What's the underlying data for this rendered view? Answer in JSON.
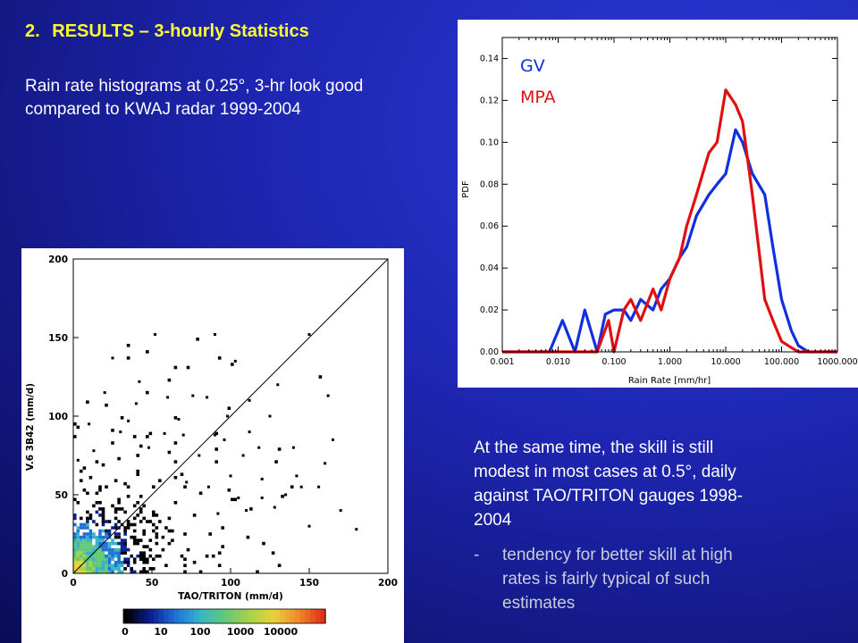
{
  "slide": {
    "heading_number": "2.",
    "heading_text": "RESULTS – 3-hourly Statistics",
    "intro_text": "Rain rate histograms at 0.25°, 3-hr look good compared to KWAJ radar 1999-2004",
    "skill_text": "At the same time, the skill is still modest in most cases at 0.5°, daily against TAO/TRITON gauges 1998-2004",
    "bullet_dash": "-",
    "bullet_text": "tendency for better skill at high rates is fairly typical of such estimates"
  },
  "colors": {
    "gv": "#1030e0",
    "mpa": "#e01010",
    "heading": "#ffff33"
  },
  "chart_data": [
    {
      "type": "line",
      "xlabel": "Rain Rate [mm/hr]",
      "ylabel": "PDF",
      "x_scale": "log",
      "xlim": [
        0.001,
        1000
      ],
      "ylim": [
        0,
        0.15
      ],
      "x_ticks": [
        0.001,
        0.01,
        0.1,
        1,
        10,
        100,
        1000
      ],
      "x_tick_labels": [
        "0.001",
        "0.010",
        "0.100",
        "1.000",
        "10.000",
        "100.000",
        "1000.000"
      ],
      "y_ticks": [
        0,
        0.02,
        0.04,
        0.06,
        0.08,
        0.1,
        0.12,
        0.14
      ],
      "y_tick_labels": [
        "0.00",
        "0.02",
        "0.04",
        "0.06",
        "0.08",
        "0.10",
        "0.12",
        "0.14"
      ],
      "legend_position": "top-left",
      "series": [
        {
          "name": "GV",
          "color": "#1030e0",
          "x": [
            0.001,
            0.007,
            0.012,
            0.02,
            0.03,
            0.05,
            0.07,
            0.1,
            0.15,
            0.2,
            0.3,
            0.5,
            0.7,
            1.0,
            1.5,
            2.0,
            3.0,
            5.0,
            7.0,
            10,
            15,
            20,
            30,
            50,
            70,
            100,
            150,
            200,
            300,
            500,
            700,
            1000
          ],
          "y": [
            0.0,
            0.0,
            0.015,
            0.0,
            0.02,
            0.0,
            0.018,
            0.02,
            0.02,
            0.015,
            0.025,
            0.02,
            0.03,
            0.035,
            0.045,
            0.05,
            0.065,
            0.075,
            0.08,
            0.085,
            0.106,
            0.1,
            0.085,
            0.075,
            0.05,
            0.025,
            0.01,
            0.003,
            0.0,
            0.0,
            0.0,
            0.0
          ]
        },
        {
          "name": "MPA",
          "color": "#e01010",
          "x": [
            0.001,
            0.02,
            0.05,
            0.08,
            0.1,
            0.15,
            0.2,
            0.3,
            0.5,
            0.7,
            1.0,
            1.5,
            2.0,
            3.0,
            5.0,
            7.0,
            10,
            15,
            20,
            30,
            50,
            70,
            100,
            150,
            200,
            300,
            500,
            700,
            1000
          ],
          "y": [
            0.0,
            0.0,
            0.0,
            0.015,
            0.0,
            0.02,
            0.025,
            0.015,
            0.03,
            0.02,
            0.035,
            0.045,
            0.06,
            0.075,
            0.095,
            0.1,
            0.125,
            0.118,
            0.11,
            0.075,
            0.025,
            0.015,
            0.005,
            0.002,
            0.0,
            0.0,
            0.0,
            0.0,
            0.0
          ]
        }
      ]
    },
    {
      "type": "scatter",
      "xlabel": "TAO/TRITON (mm/d)",
      "ylabel": "V.6 3B42 (mm/d)",
      "xlim": [
        0,
        200
      ],
      "ylim": [
        0,
        200
      ],
      "x_ticks": [
        0,
        50,
        100,
        150,
        200
      ],
      "x_tick_labels": [
        "0",
        "50",
        "100",
        "150",
        "200"
      ],
      "y_ticks": [
        0,
        50,
        100,
        150,
        200
      ],
      "y_tick_labels": [
        "0",
        "50",
        "100",
        "150",
        "200"
      ],
      "reference_line": "1:1",
      "colorbar": {
        "tick_labels": [
          "0",
          "10",
          "100",
          "1000",
          "10000"
        ],
        "colors": [
          "#000000",
          "#0a1f8f",
          "#1f6fd6",
          "#35b4c8",
          "#62c87a",
          "#a6d24a",
          "#e8d23a",
          "#f08a2a",
          "#e0301a"
        ]
      },
      "sample_points": [
        [
          52,
          152
        ],
        [
          90,
          152
        ],
        [
          103,
          135
        ],
        [
          150,
          152
        ],
        [
          162,
          113
        ],
        [
          156,
          55
        ],
        [
          180,
          28
        ],
        [
          165,
          85
        ],
        [
          140,
          80
        ],
        [
          130,
          120
        ],
        [
          120,
          60
        ],
        [
          145,
          55
        ],
        [
          100,
          62
        ],
        [
          112,
          90
        ],
        [
          96,
          85
        ],
        [
          108,
          75
        ],
        [
          118,
          80
        ],
        [
          135,
          50
        ],
        [
          170,
          40
        ],
        [
          125,
          100
        ],
        [
          98,
          100
        ],
        [
          85,
          112
        ],
        [
          76,
          113
        ],
        [
          60,
          112
        ],
        [
          42,
          122
        ],
        [
          25,
          137
        ],
        [
          20,
          115
        ],
        [
          40,
          108
        ],
        [
          35,
          97
        ],
        [
          67,
          98
        ],
        [
          90,
          88
        ],
        [
          80,
          75
        ],
        [
          70,
          88
        ],
        [
          110,
          40
        ],
        [
          128,
          42
        ],
        [
          142,
          62
        ],
        [
          112,
          110
        ],
        [
          58,
          89
        ],
        [
          30,
          90
        ],
        [
          10,
          95
        ],
        [
          13,
          78
        ],
        [
          3,
          72
        ],
        [
          48,
          80
        ],
        [
          72,
          58
        ],
        [
          86,
          55
        ],
        [
          105,
          48
        ],
        [
          120,
          48
        ],
        [
          92,
          38
        ],
        [
          160,
          70
        ],
        [
          150,
          30
        ]
      ]
    }
  ]
}
